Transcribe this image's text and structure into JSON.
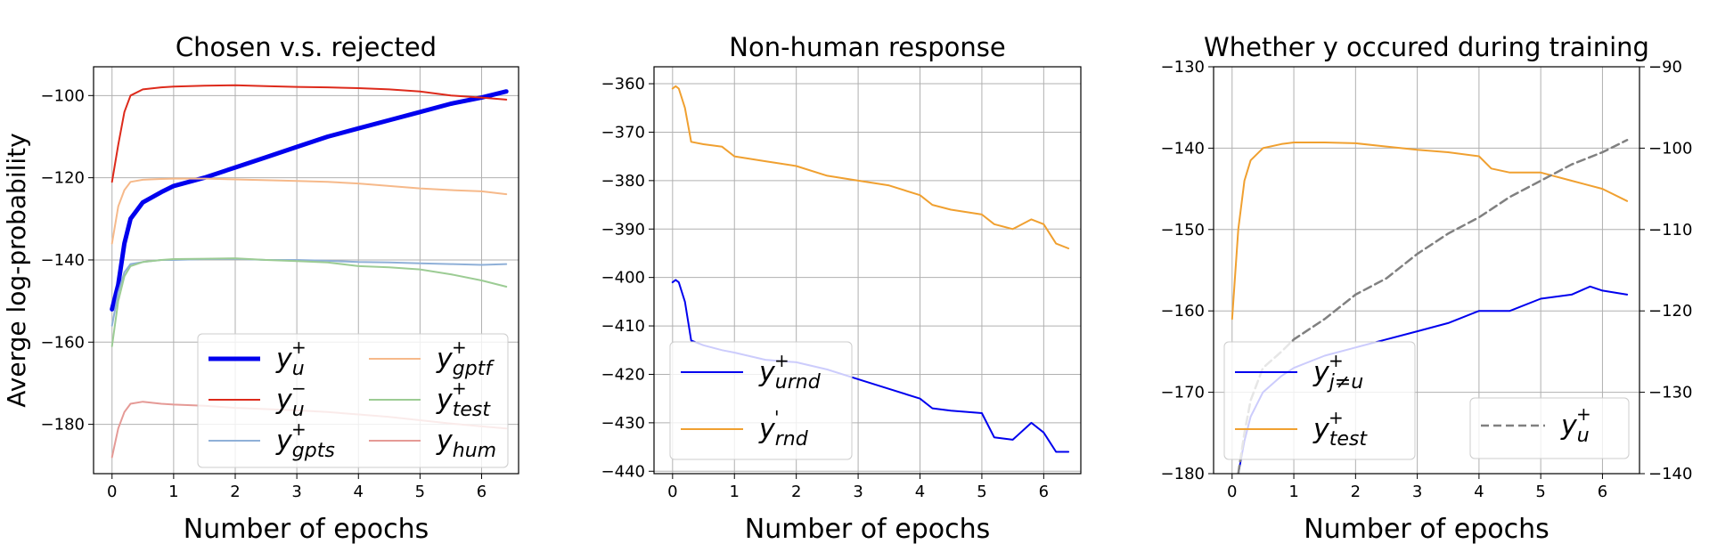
{
  "chart_data": [
    {
      "type": "line",
      "title": "Chosen v.s. rejected",
      "xlabel": "Number of epochs",
      "ylabel": "Averge log-probability",
      "xlim": [
        -0.3,
        6.6
      ],
      "ylim": [
        -192,
        -93
      ],
      "xticks": [
        0,
        1,
        2,
        3,
        4,
        5,
        6
      ],
      "yticks": [
        -180,
        -160,
        -140,
        -120,
        -100
      ],
      "grid": true,
      "legend": "lower-right",
      "legend_columns": 2,
      "series": [
        {
          "name": "y_u^+",
          "label_base": "y",
          "label_sub": "u",
          "label_sup": "+",
          "color": "#0000ee",
          "width": 5,
          "alpha": 1,
          "x": [
            0,
            0.1,
            0.2,
            0.3,
            0.5,
            0.8,
            1.0,
            1.5,
            2.0,
            2.5,
            3.0,
            3.5,
            4.0,
            4.5,
            5.0,
            5.5,
            6.0,
            6.4
          ],
          "y": [
            -152,
            -146,
            -136,
            -130,
            -126,
            -123.5,
            -122,
            -120,
            -117.5,
            -115,
            -112.5,
            -110,
            -108,
            -106,
            -104,
            -102,
            -100.5,
            -99
          ]
        },
        {
          "name": "y_u^-",
          "label_base": "y",
          "label_sub": "u",
          "label_sup": "−",
          "color": "#dd2a1b",
          "width": 2,
          "alpha": 1,
          "x": [
            0,
            0.1,
            0.2,
            0.3,
            0.5,
            0.8,
            1.0,
            1.5,
            2.0,
            2.5,
            3.0,
            3.5,
            4.0,
            4.5,
            5.0,
            5.5,
            6.0,
            6.4
          ],
          "y": [
            -121,
            -112,
            -104,
            -100,
            -98.5,
            -98,
            -97.8,
            -97.6,
            -97.5,
            -97.7,
            -97.9,
            -98,
            -98.2,
            -98.5,
            -99,
            -100,
            -100.5,
            -101
          ]
        },
        {
          "name": "y_gpts^+",
          "label_base": "y",
          "label_sub": "gpts",
          "label_sup": "+",
          "color": "#8fb0d8",
          "width": 2,
          "alpha": 1,
          "x": [
            0,
            0.1,
            0.2,
            0.3,
            0.5,
            0.8,
            1.0,
            1.5,
            2.0,
            2.5,
            3.0,
            3.5,
            4.0,
            4.5,
            5.0,
            5.5,
            6.0,
            6.4
          ],
          "y": [
            -156,
            -148,
            -143,
            -141,
            -140.5,
            -140,
            -140,
            -139.8,
            -139.7,
            -140,
            -140,
            -140.2,
            -140.5,
            -140.6,
            -140.8,
            -141,
            -141.2,
            -141
          ]
        },
        {
          "name": "y_gptf^+",
          "label_base": "y",
          "label_sub": "gptf",
          "label_sup": "+",
          "color": "#f6b98a",
          "width": 2,
          "alpha": 1,
          "x": [
            0,
            0.1,
            0.2,
            0.3,
            0.5,
            0.8,
            1.0,
            1.5,
            2.0,
            2.5,
            3.0,
            3.5,
            4.0,
            4.5,
            5.0,
            5.5,
            6.0,
            6.4
          ],
          "y": [
            -136,
            -127,
            -123,
            -121,
            -120.5,
            -120.3,
            -120.2,
            -120.2,
            -120.4,
            -120.6,
            -120.8,
            -121,
            -121.4,
            -122,
            -122.6,
            -123,
            -123.3,
            -124
          ]
        },
        {
          "name": "y_test^+",
          "label_base": "y",
          "label_sub": "test",
          "label_sup": "+",
          "color": "#9ccc94",
          "width": 2,
          "alpha": 1,
          "x": [
            0,
            0.1,
            0.2,
            0.3,
            0.5,
            0.8,
            1.0,
            1.5,
            2.0,
            2.5,
            3.0,
            3.5,
            4.0,
            4.5,
            5.0,
            5.5,
            6.0,
            6.4
          ],
          "y": [
            -161,
            -150,
            -144,
            -141.5,
            -140.5,
            -140,
            -139.8,
            -139.7,
            -139.6,
            -140,
            -140.3,
            -140.6,
            -141.5,
            -141.8,
            -142.3,
            -143.5,
            -145,
            -146.5
          ]
        },
        {
          "name": "y_hum",
          "label_base": "y",
          "label_sub": "hum",
          "label_sup": "",
          "color": "#e59a96",
          "width": 2,
          "alpha": 1,
          "x": [
            0,
            0.1,
            0.2,
            0.3,
            0.5,
            0.8,
            1.0,
            1.5,
            2.0,
            2.5,
            3.0,
            3.5,
            4.0,
            4.5,
            5.0,
            5.5,
            6.0,
            6.4
          ],
          "y": [
            -188,
            -181,
            -177,
            -175,
            -174.5,
            -175,
            -175.2,
            -175.5,
            -176,
            -176.3,
            -176.6,
            -177,
            -177.6,
            -178.2,
            -179,
            -179.8,
            -180.5,
            -181
          ]
        }
      ]
    },
    {
      "type": "line",
      "title": "Non-human response",
      "xlabel": "Number of epochs",
      "ylabel": "",
      "xlim": [
        -0.3,
        6.6
      ],
      "ylim": [
        -440.5,
        -356.5
      ],
      "xticks": [
        0,
        1,
        2,
        3,
        4,
        5,
        6
      ],
      "yticks": [
        -440,
        -430,
        -420,
        -410,
        -400,
        -390,
        -380,
        -370,
        -360
      ],
      "grid": true,
      "legend": "lower-left",
      "legend_columns": 1,
      "series": [
        {
          "name": "y_urnd^+",
          "label_base": "y",
          "label_sub": "urnd",
          "label_sup": "+",
          "color": "#0000ee",
          "width": 2,
          "alpha": 1,
          "x": [
            0,
            0.05,
            0.1,
            0.2,
            0.3,
            0.5,
            0.8,
            1.0,
            1.5,
            2.0,
            2.5,
            3.0,
            3.5,
            4.0,
            4.2,
            4.5,
            5.0,
            5.2,
            5.5,
            5.8,
            6.0,
            6.2,
            6.4
          ],
          "y": [
            -401,
            -400.5,
            -401,
            -405,
            -413,
            -414,
            -415,
            -415.5,
            -417,
            -417.5,
            -419,
            -421,
            -423,
            -425,
            -427,
            -427.5,
            -428,
            -433,
            -433.5,
            -430,
            -432,
            -436,
            -436
          ]
        },
        {
          "name": "y'_rnd",
          "label_base": "y",
          "label_sub": "rnd",
          "label_sup": "'",
          "color": "#f0a030",
          "width": 2,
          "alpha": 1,
          "x": [
            0,
            0.05,
            0.1,
            0.2,
            0.3,
            0.5,
            0.8,
            1.0,
            1.5,
            2.0,
            2.5,
            3.0,
            3.5,
            4.0,
            4.2,
            4.5,
            5.0,
            5.2,
            5.5,
            5.8,
            6.0,
            6.2,
            6.4
          ],
          "y": [
            -361,
            -360.5,
            -361,
            -365,
            -372,
            -372.5,
            -373,
            -375,
            -376,
            -377,
            -379,
            -380,
            -381,
            -383,
            -385,
            -386,
            -387,
            -389,
            -390,
            -388,
            -389,
            -393,
            -394
          ]
        }
      ]
    },
    {
      "type": "line",
      "title": "Whether y occured during training",
      "xlabel": "Number of epochs",
      "ylabel": "",
      "xlim": [
        -0.3,
        6.6
      ],
      "ylim": [
        -180,
        -130
      ],
      "y2lim": [
        -140,
        -90
      ],
      "xticks": [
        0,
        1,
        2,
        3,
        4,
        5,
        6
      ],
      "yticks": [
        -180,
        -170,
        -160,
        -150,
        -140,
        -130
      ],
      "y2ticks": [
        -140,
        -130,
        -120,
        -110,
        -100,
        -90
      ],
      "grid": true,
      "legend": "lower-left, lower-right",
      "legend_columns": 1,
      "series": [
        {
          "name": "y_{j≠u}^+",
          "label_base": "y",
          "label_sub": "j≠u",
          "label_sup": "+",
          "color": "#0000ee",
          "width": 2,
          "alpha": 1,
          "axis": "left",
          "legend_group": 0,
          "x": [
            0.1,
            0.2,
            0.3,
            0.5,
            0.8,
            1.0,
            1.5,
            2.0,
            2.5,
            3.0,
            3.5,
            4.0,
            4.5,
            5.0,
            5.5,
            5.8,
            6.0,
            6.4
          ],
          "y": [
            -180,
            -176,
            -173,
            -170,
            -168,
            -167,
            -165.5,
            -164.5,
            -163.5,
            -162.5,
            -161.5,
            -160,
            -160,
            -158.5,
            -158,
            -157,
            -157.5,
            -158
          ]
        },
        {
          "name": "y_test^+",
          "label_base": "y",
          "label_sub": "test",
          "label_sup": "+",
          "color": "#f0a030",
          "width": 2,
          "alpha": 1,
          "axis": "left",
          "legend_group": 0,
          "x": [
            0,
            0.1,
            0.2,
            0.3,
            0.5,
            0.8,
            1.0,
            1.5,
            2.0,
            2.5,
            3.0,
            3.5,
            4.0,
            4.2,
            4.5,
            5.0,
            5.5,
            6.0,
            6.4
          ],
          "y": [
            -161,
            -150,
            -144,
            -141.5,
            -140,
            -139.5,
            -139.3,
            -139.3,
            -139.4,
            -139.8,
            -140.2,
            -140.5,
            -141,
            -142.5,
            -143,
            -143,
            -144,
            -145,
            -146.5
          ]
        },
        {
          "name": "y_u^+",
          "label_base": "y",
          "label_sub": "u",
          "label_sup": "+",
          "color": "#808080",
          "width": 2.5,
          "alpha": 1,
          "dashed": true,
          "axis": "right",
          "legend_group": 1,
          "x": [
            0.1,
            0.2,
            0.3,
            0.5,
            0.8,
            1.0,
            1.5,
            2.0,
            2.5,
            3.0,
            3.5,
            4.0,
            4.5,
            5.0,
            5.5,
            6.0,
            6.4
          ],
          "y": [
            -140,
            -135,
            -131,
            -127,
            -125,
            -123.5,
            -121,
            -118,
            -116,
            -113,
            -110.5,
            -108.5,
            -106,
            -104,
            -102,
            -100.5,
            -99
          ]
        }
      ]
    }
  ]
}
